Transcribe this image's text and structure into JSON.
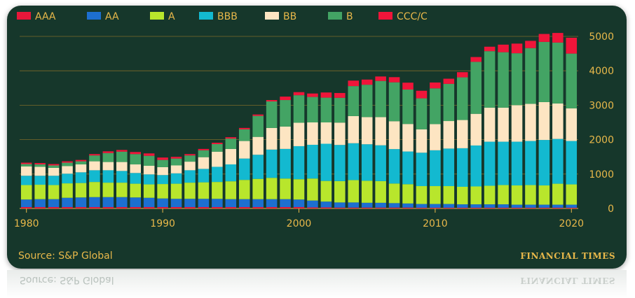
{
  "chart_data": {
    "type": "bar",
    "stacked": true,
    "x": [
      1980,
      1981,
      1982,
      1983,
      1984,
      1985,
      1986,
      1987,
      1988,
      1989,
      1990,
      1991,
      1992,
      1993,
      1994,
      1995,
      1996,
      1997,
      1998,
      1999,
      2000,
      2001,
      2002,
      2003,
      2004,
      2005,
      2006,
      2007,
      2008,
      2009,
      2010,
      2011,
      2012,
      2013,
      2014,
      2015,
      2016,
      2017,
      2018,
      2019,
      2020
    ],
    "x_tick_labels": [
      "1980",
      "1990",
      "2000",
      "2010",
      "2020"
    ],
    "y_tick_labels": [
      "0",
      "1000",
      "2000",
      "3000",
      "4000",
      "5000"
    ],
    "ylim": [
      0,
      5250
    ],
    "legend_position": "top",
    "grid": true,
    "series": [
      {
        "name": "AAA",
        "color": "#e8173a",
        "values": [
          40,
          40,
          40,
          40,
          40,
          40,
          40,
          40,
          40,
          40,
          40,
          40,
          40,
          40,
          40,
          40,
          40,
          40,
          40,
          40,
          40,
          30,
          30,
          25,
          25,
          25,
          25,
          25,
          25,
          20,
          20,
          20,
          20,
          20,
          20,
          20,
          20,
          20,
          20,
          20,
          20
        ]
      },
      {
        "name": "AA",
        "color": "#1d6fd0",
        "values": [
          220,
          230,
          230,
          270,
          280,
          290,
          290,
          290,
          280,
          270,
          250,
          240,
          240,
          240,
          240,
          230,
          230,
          230,
          230,
          230,
          220,
          200,
          170,
          150,
          150,
          140,
          140,
          130,
          120,
          110,
          110,
          110,
          100,
          100,
          100,
          100,
          90,
          90,
          90,
          90,
          90
        ]
      },
      {
        "name": "A",
        "color": "#b8e62c",
        "values": [
          420,
          420,
          410,
          420,
          420,
          440,
          420,
          420,
          400,
          390,
          420,
          440,
          470,
          480,
          490,
          520,
          560,
          590,
          620,
          600,
          590,
          640,
          600,
          620,
          650,
          640,
          630,
          570,
          560,
          520,
          520,
          520,
          510,
          520,
          540,
          560,
          560,
          570,
          560,
          610,
          590
        ]
      },
      {
        "name": "BBB",
        "color": "#13b9d0",
        "values": [
          270,
          260,
          270,
          280,
          310,
          340,
          360,
          340,
          310,
          290,
          260,
          300,
          360,
          390,
          440,
          490,
          620,
          700,
          820,
          860,
          960,
          980,
          1080,
          1050,
          1070,
          1060,
          1040,
          1000,
          950,
          970,
          1040,
          1090,
          1120,
          1190,
          1280,
          1260,
          1270,
          1280,
          1320,
          1300,
          1260
        ]
      },
      {
        "name": "BB",
        "color": "#fde5c2",
        "values": [
          270,
          260,
          230,
          220,
          230,
          260,
          240,
          260,
          250,
          250,
          230,
          230,
          250,
          340,
          440,
          450,
          510,
          520,
          630,
          650,
          680,
          650,
          620,
          650,
          790,
          790,
          820,
          810,
          800,
          680,
          760,
          800,
          820,
          920,
          990,
          990,
          1060,
          1080,
          1100,
          1030,
          950
        ]
      },
      {
        "name": "B",
        "color": "#43a464",
        "values": [
          70,
          70,
          70,
          100,
          90,
          170,
          260,
          300,
          300,
          290,
          210,
          200,
          180,
          200,
          220,
          300,
          340,
          610,
          770,
          770,
          800,
          740,
          720,
          720,
          870,
          940,
          1050,
          1130,
          1000,
          900,
          1040,
          1080,
          1240,
          1510,
          1640,
          1610,
          1510,
          1620,
          1750,
          1770,
          1590
        ]
      },
      {
        "name": "CCC/C",
        "color": "#f0153a",
        "values": [
          40,
          40,
          40,
          40,
          40,
          40,
          50,
          50,
          60,
          70,
          70,
          50,
          40,
          40,
          40,
          40,
          40,
          40,
          40,
          100,
          90,
          100,
          150,
          140,
          160,
          150,
          130,
          150,
          200,
          220,
          170,
          150,
          150,
          140,
          130,
          220,
          280,
          210,
          230,
          280,
          460
        ]
      }
    ]
  },
  "source": "Source: S&P Global",
  "brand": "FINANCIAL TIMES"
}
